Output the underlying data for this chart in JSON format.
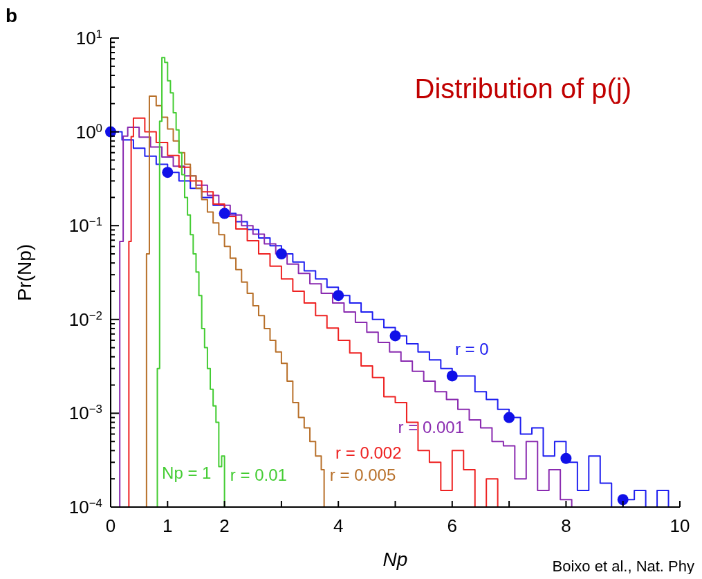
{
  "chart_data": {
    "type": "step",
    "title": "Distribution of p(j)",
    "xlabel": "Np",
    "ylabel": "Pr(Np)",
    "log": "y",
    "grid": false,
    "legend": false,
    "xlim": [
      0,
      10
    ],
    "xticks": [
      0,
      1,
      2,
      {
        "value": 3,
        "label": null
      },
      4,
      {
        "value": 5,
        "label": null
      },
      6,
      {
        "value": 7,
        "label": null
      },
      8,
      {
        "value": 9,
        "label": null
      },
      10
    ],
    "ylim": [
      0.0001,
      10
    ],
    "yticks": [
      {
        "value": 0.0001,
        "label": "10$^{−4}$"
      },
      {
        "value": 0.0002,
        "label": null
      },
      {
        "value": 0.0003,
        "label": null
      },
      {
        "value": 0.0004,
        "label": null
      },
      {
        "value": 0.0005,
        "label": null
      },
      {
        "value": 0.0006,
        "label": null
      },
      {
        "value": 0.0007,
        "label": null
      },
      {
        "value": 0.0008,
        "label": null
      },
      {
        "value": 0.0009,
        "label": null
      },
      {
        "value": 0.001,
        "label": "10$^{−3}$"
      },
      {
        "value": 0.002,
        "label": null
      },
      {
        "value": 0.003,
        "label": null
      },
      {
        "value": 0.004,
        "label": null
      },
      {
        "value": 0.005,
        "label": null
      },
      {
        "value": 0.006,
        "label": null
      },
      {
        "value": 0.007,
        "label": null
      },
      {
        "value": 0.008,
        "label": null
      },
      {
        "value": 0.009,
        "label": null
      },
      {
        "value": 0.01,
        "label": "10$^{−2}$"
      },
      {
        "value": 0.02,
        "label": null
      },
      {
        "value": 0.03,
        "label": null
      },
      {
        "value": 0.04,
        "label": null
      },
      {
        "value": 0.05,
        "label": null
      },
      {
        "value": 0.06,
        "label": null
      },
      {
        "value": 0.07,
        "label": null
      },
      {
        "value": 0.08,
        "label": null
      },
      {
        "value": 0.09,
        "label": null
      },
      {
        "value": 0.1,
        "label": "10$^{−1}$"
      },
      {
        "value": 0.2,
        "label": null
      },
      {
        "value": 0.3,
        "label": null
      },
      {
        "value": 0.4,
        "label": null
      },
      {
        "value": 0.5,
        "label": null
      },
      {
        "value": 0.6,
        "label": null
      },
      {
        "value": 0.7,
        "label": null
      },
      {
        "value": 0.8,
        "label": null
      },
      {
        "value": 0.9,
        "label": null
      },
      {
        "value": 1,
        "label": "10$^{0}$"
      },
      {
        "value": 2,
        "label": null
      },
      {
        "value": 3,
        "label": null
      },
      {
        "value": 4,
        "label": null
      },
      {
        "value": 5,
        "label": null
      },
      {
        "value": 6,
        "label": null
      },
      {
        "value": 7,
        "label": null
      },
      {
        "value": 8,
        "label": null
      },
      {
        "value": 9,
        "label": null
      },
      {
        "value": 10,
        "label": "10$^{1}$"
      }
    ],
    "series": [
      {
        "name": "r = 0",
        "color": "#2020f0",
        "x": [
          0,
          0.2,
          0.4,
          0.6,
          0.8,
          1,
          1.2,
          1.4,
          1.6,
          1.8,
          2,
          2.2,
          2.4,
          2.6,
          2.8,
          3,
          3.2,
          3.4,
          3.6,
          3.8,
          4,
          4.2,
          4.4,
          4.6,
          4.8,
          5,
          5.2,
          5.4,
          5.6,
          5.8,
          6,
          6.2,
          6.4,
          6.6,
          6.8,
          7,
          7.2,
          7.4,
          7.6,
          7.8,
          8,
          8.2,
          8.4,
          8.6,
          8.8,
          9,
          9.2,
          9.4,
          9.6,
          9.8
        ],
        "values": [
          1,
          0.82,
          0.67,
          0.55,
          0.45,
          0.37,
          0.3,
          0.25,
          0.2,
          0.165,
          0.135,
          0.11,
          0.091,
          0.074,
          0.061,
          0.05,
          0.041,
          0.033,
          0.027,
          0.022,
          0.018,
          0.015,
          0.012,
          0.01,
          0.0082,
          0.0067,
          0.0055,
          0.0045,
          0.0037,
          0.003,
          0.0025,
          0.0025,
          0.0017,
          0.0014,
          0.0011,
          0.0009,
          0.0006,
          0.0007,
          0.00035,
          0.0005,
          0.0003,
          0.00015,
          0.00035,
          0.00018,
          0.0001,
          0.00012,
          0.00015,
          0.0001,
          0.00015,
          0.0001
        ]
      },
      {
        "name": "r = 0.001",
        "color": "#8a2bb0",
        "x": [
          0.14,
          0.16,
          0.22,
          0.3,
          0.5,
          0.7,
          0.9,
          1.1,
          1.3,
          1.5,
          1.7,
          1.9,
          2.1,
          2.3,
          2.5,
          2.7,
          2.9,
          3.1,
          3.3,
          3.5,
          3.7,
          3.9,
          4.1,
          4.3,
          4.5,
          4.7,
          4.9,
          5.1,
          5.3,
          5.5,
          5.7,
          5.9,
          6.1,
          6.3,
          6.5,
          6.7,
          6.9,
          7.1,
          7.3,
          7.5,
          7.7,
          7.9,
          8.1
        ],
        "values": [
          0.0001,
          0.068,
          0.9,
          1.12,
          0.88,
          0.69,
          0.54,
          0.43,
          0.34,
          0.27,
          0.21,
          0.165,
          0.13,
          0.1,
          0.081,
          0.064,
          0.05,
          0.039,
          0.031,
          0.024,
          0.019,
          0.015,
          0.012,
          0.0093,
          0.0073,
          0.0057,
          0.0045,
          0.0036,
          0.0028,
          0.0022,
          0.0017,
          0.0014,
          0.0011,
          0.00085,
          0.0007,
          0.0005,
          0.00045,
          0.0002,
          0.0005,
          0.00015,
          0.00025,
          0.00012,
          0.0001
        ]
      },
      {
        "name": "r = 0.002",
        "color": "#ee2222",
        "x": [
          0.3,
          0.32,
          0.36,
          0.4,
          0.6,
          0.8,
          1,
          1.2,
          1.4,
          1.6,
          1.8,
          2,
          2.2,
          2.4,
          2.6,
          2.8,
          3,
          3.2,
          3.4,
          3.6,
          3.8,
          4,
          4.2,
          4.4,
          4.6,
          4.8,
          5,
          5.2,
          5.4,
          5.6,
          5.8,
          6,
          6.2,
          6.4,
          6.6,
          6.8
        ],
        "values": [
          0.0001,
          0.068,
          0.89,
          1.4,
          1,
          0.77,
          0.56,
          0.42,
          0.3,
          0.23,
          0.17,
          0.125,
          0.092,
          0.069,
          0.05,
          0.037,
          0.027,
          0.02,
          0.015,
          0.011,
          0.0081,
          0.006,
          0.0044,
          0.0032,
          0.0024,
          0.0015,
          0.0013,
          0.0008,
          0.0004,
          0.0003,
          0.00015,
          0.0004,
          0.00025,
          0.0001,
          0.0002,
          0.0001
        ]
      },
      {
        "name": "r = 0.005",
        "color": "#b8702a",
        "x": [
          0.6,
          0.63,
          0.68,
          0.8,
          0.9,
          1,
          1.1,
          1.2,
          1.3,
          1.4,
          1.5,
          1.6,
          1.7,
          1.8,
          1.9,
          2,
          2.1,
          2.2,
          2.3,
          2.4,
          2.5,
          2.6,
          2.7,
          2.8,
          2.9,
          3,
          3.1,
          3.2,
          3.3,
          3.4,
          3.5,
          3.6,
          3.7,
          3.75
        ],
        "values": [
          0.0001,
          0.05,
          2.4,
          1.9,
          1.43,
          1.07,
          0.8,
          0.6,
          0.45,
          0.34,
          0.25,
          0.19,
          0.14,
          0.107,
          0.08,
          0.06,
          0.045,
          0.034,
          0.025,
          0.019,
          0.014,
          0.011,
          0.008,
          0.006,
          0.0045,
          0.0034,
          0.0022,
          0.0013,
          0.0009,
          0.0007,
          0.0005,
          0.00035,
          0.00025,
          0.0001
        ]
      },
      {
        "name": "r = 0.01",
        "color": "#44cc33",
        "x": [
          0.78,
          0.82,
          0.86,
          0.9,
          0.95,
          1,
          1.05,
          1.1,
          1.15,
          1.2,
          1.25,
          1.3,
          1.35,
          1.4,
          1.45,
          1.5,
          1.55,
          1.6,
          1.65,
          1.7,
          1.75,
          1.8,
          1.85,
          1.9,
          1.95,
          2
        ],
        "values": [
          0.0001,
          0.003,
          1.3,
          6.2,
          5.5,
          3.5,
          2.6,
          1.6,
          1.05,
          0.6,
          0.35,
          0.2,
          0.13,
          0.08,
          0.05,
          0.032,
          0.018,
          0.008,
          0.005,
          0.003,
          0.0018,
          0.0012,
          0.0008,
          0.00027,
          0.00035,
          0.0001
        ]
      },
      {
        "type": "scatter",
        "color": "#1010e8",
        "marker": "circle",
        "x": [
          0,
          1,
          2,
          3,
          4,
          5,
          6,
          7,
          8,
          9
        ],
        "values": [
          1,
          0.37,
          0.135,
          0.05,
          0.018,
          0.0067,
          0.0025,
          0.0009,
          0.00033,
          0.00012
        ]
      }
    ],
    "annotations": [
      "b",
      "Np = 1",
      "Boixo et al., Nat. Phy"
    ]
  }
}
